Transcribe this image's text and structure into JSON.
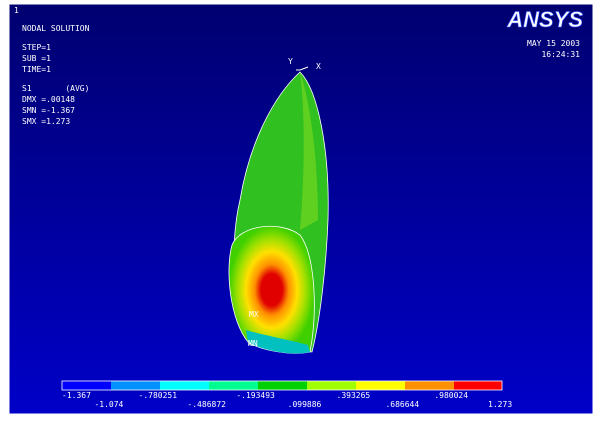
{
  "window": {
    "number": "1",
    "title": "NODAL SOLUTION"
  },
  "info": [
    "STEP=1",
    "SUB =1",
    "TIME=1",
    "S1       (AVG)",
    "DMX =.00148",
    "SMN =-1.367",
    "SMX =1.273"
  ],
  "logo": "ANSYS",
  "date": "MAY 15 2003",
  "time": "16:24:31",
  "triad": {
    "y": "Y",
    "x": "X"
  },
  "markers": {
    "max": "MX",
    "min": "MN"
  },
  "legend": {
    "labels": [
      "-1.367",
      "-1.074",
      "-.780251",
      "-.486872",
      "-.193493",
      ".099886",
      ".393265",
      ".686644",
      ".980024",
      "1.273"
    ]
  }
}
